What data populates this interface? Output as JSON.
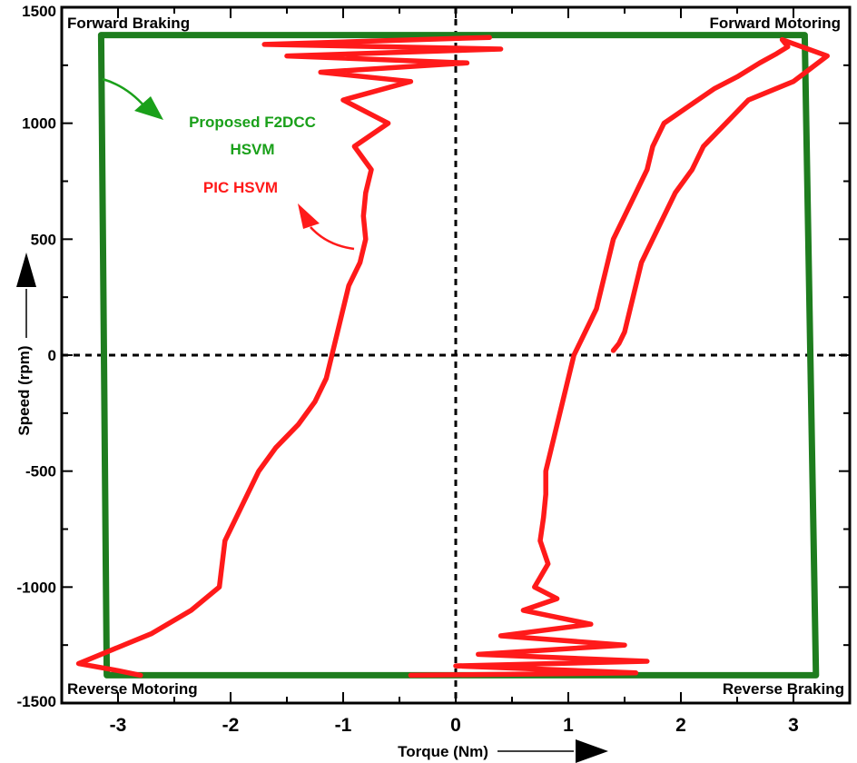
{
  "chart_data": {
    "type": "line",
    "xlabel": "Torque (Nm)",
    "ylabel": "Speed (rpm)",
    "xlim": [
      -3.5,
      3.5
    ],
    "ylim": [
      -1500,
      1500
    ],
    "x_ticks": [
      -3,
      -2,
      -1,
      0,
      1,
      2,
      3
    ],
    "x_tick_labels": [
      "-3",
      "-2",
      "-1",
      "0",
      "1",
      "2",
      "3"
    ],
    "y_ticks": [
      -1500,
      -1000,
      -500,
      0,
      500,
      1000,
      1500
    ],
    "y_tick_labels": [
      "-1500",
      "-1000",
      "-500",
      "0",
      "500",
      "1000",
      "1500"
    ],
    "grid": false,
    "reference_lines": {
      "x": 0,
      "y": 0,
      "style": "dashed"
    },
    "quadrant_labels": {
      "top_left": "Forward Braking",
      "top_right": "Forward Motoring",
      "bottom_left": "Reverse Motoring",
      "bottom_right": "Reverse Braking"
    },
    "annotations": {
      "green_line1": "Proposed F2DCC",
      "green_line2": "HSVM",
      "red": "PIC HSVM"
    },
    "colors": {
      "f2dcc": "#1e7d1e",
      "pic": "#ff1a1a",
      "green_text": "#1aa01a",
      "red_text": "#ff1a1a"
    },
    "series": [
      {
        "key": "f2dcc",
        "color": "#1e7d1e",
        "x": [
          -3.15,
          3.1,
          3.15,
          3.2,
          -3.1,
          -3.15
        ],
        "y": [
          1380,
          1380,
          0,
          -1380,
          -1380,
          1380
        ]
      },
      {
        "key": "pic_left",
        "color": "#ff1a1a",
        "x": [
          0.3,
          -1.7,
          0.4,
          -1.5,
          0.1,
          -1.2,
          -0.4,
          -1.0,
          -0.6,
          -0.9,
          -0.75,
          -0.8,
          -0.82,
          -0.8,
          -0.85,
          -0.95,
          -1.0,
          -1.05,
          -1.1,
          -1.15,
          -1.25,
          -1.4,
          -1.6,
          -1.75,
          -1.85,
          -2.05,
          -2.1,
          -2.35,
          -2.7,
          -3.1,
          -3.35,
          -3.0,
          -2.8
        ],
        "y": [
          1370,
          1340,
          1320,
          1290,
          1260,
          1220,
          1180,
          1100,
          1000,
          900,
          800,
          700,
          600,
          500,
          400,
          300,
          200,
          100,
          0,
          -100,
          -200,
          -300,
          -400,
          -500,
          -600,
          -800,
          -1000,
          -1100,
          -1200,
          -1280,
          -1330,
          -1360,
          -1380
        ]
      },
      {
        "key": "pic_right",
        "color": "#ff1a1a",
        "x": [
          -0.4,
          1.6,
          0.0,
          1.7,
          0.2,
          1.5,
          0.4,
          1.2,
          0.6,
          0.9,
          0.7,
          0.82,
          0.75,
          0.78,
          0.8,
          0.8,
          0.85,
          0.9,
          0.95,
          1.0,
          1.05,
          1.15,
          1.25,
          1.3,
          1.35,
          1.4,
          1.5,
          1.6,
          1.7,
          1.75,
          1.85,
          2.0,
          2.15,
          2.3,
          2.5,
          2.7,
          2.85,
          2.95,
          2.9,
          3.3,
          3.0,
          2.6,
          2.4,
          2.2,
          2.1,
          1.95,
          1.85,
          1.75,
          1.65,
          1.6,
          1.55,
          1.5,
          1.45,
          1.4
        ],
        "y": [
          -1380,
          -1370,
          -1340,
          -1320,
          -1290,
          -1250,
          -1210,
          -1160,
          -1100,
          -1050,
          -1000,
          -900,
          -800,
          -700,
          -600,
          -500,
          -400,
          -300,
          -200,
          -100,
          0,
          100,
          200,
          300,
          400,
          500,
          600,
          700,
          800,
          900,
          1000,
          1050,
          1100,
          1150,
          1200,
          1260,
          1300,
          1330,
          1360,
          1290,
          1180,
          1100,
          1000,
          900,
          800,
          700,
          600,
          500,
          400,
          300,
          200,
          100,
          50,
          20
        ]
      }
    ]
  }
}
